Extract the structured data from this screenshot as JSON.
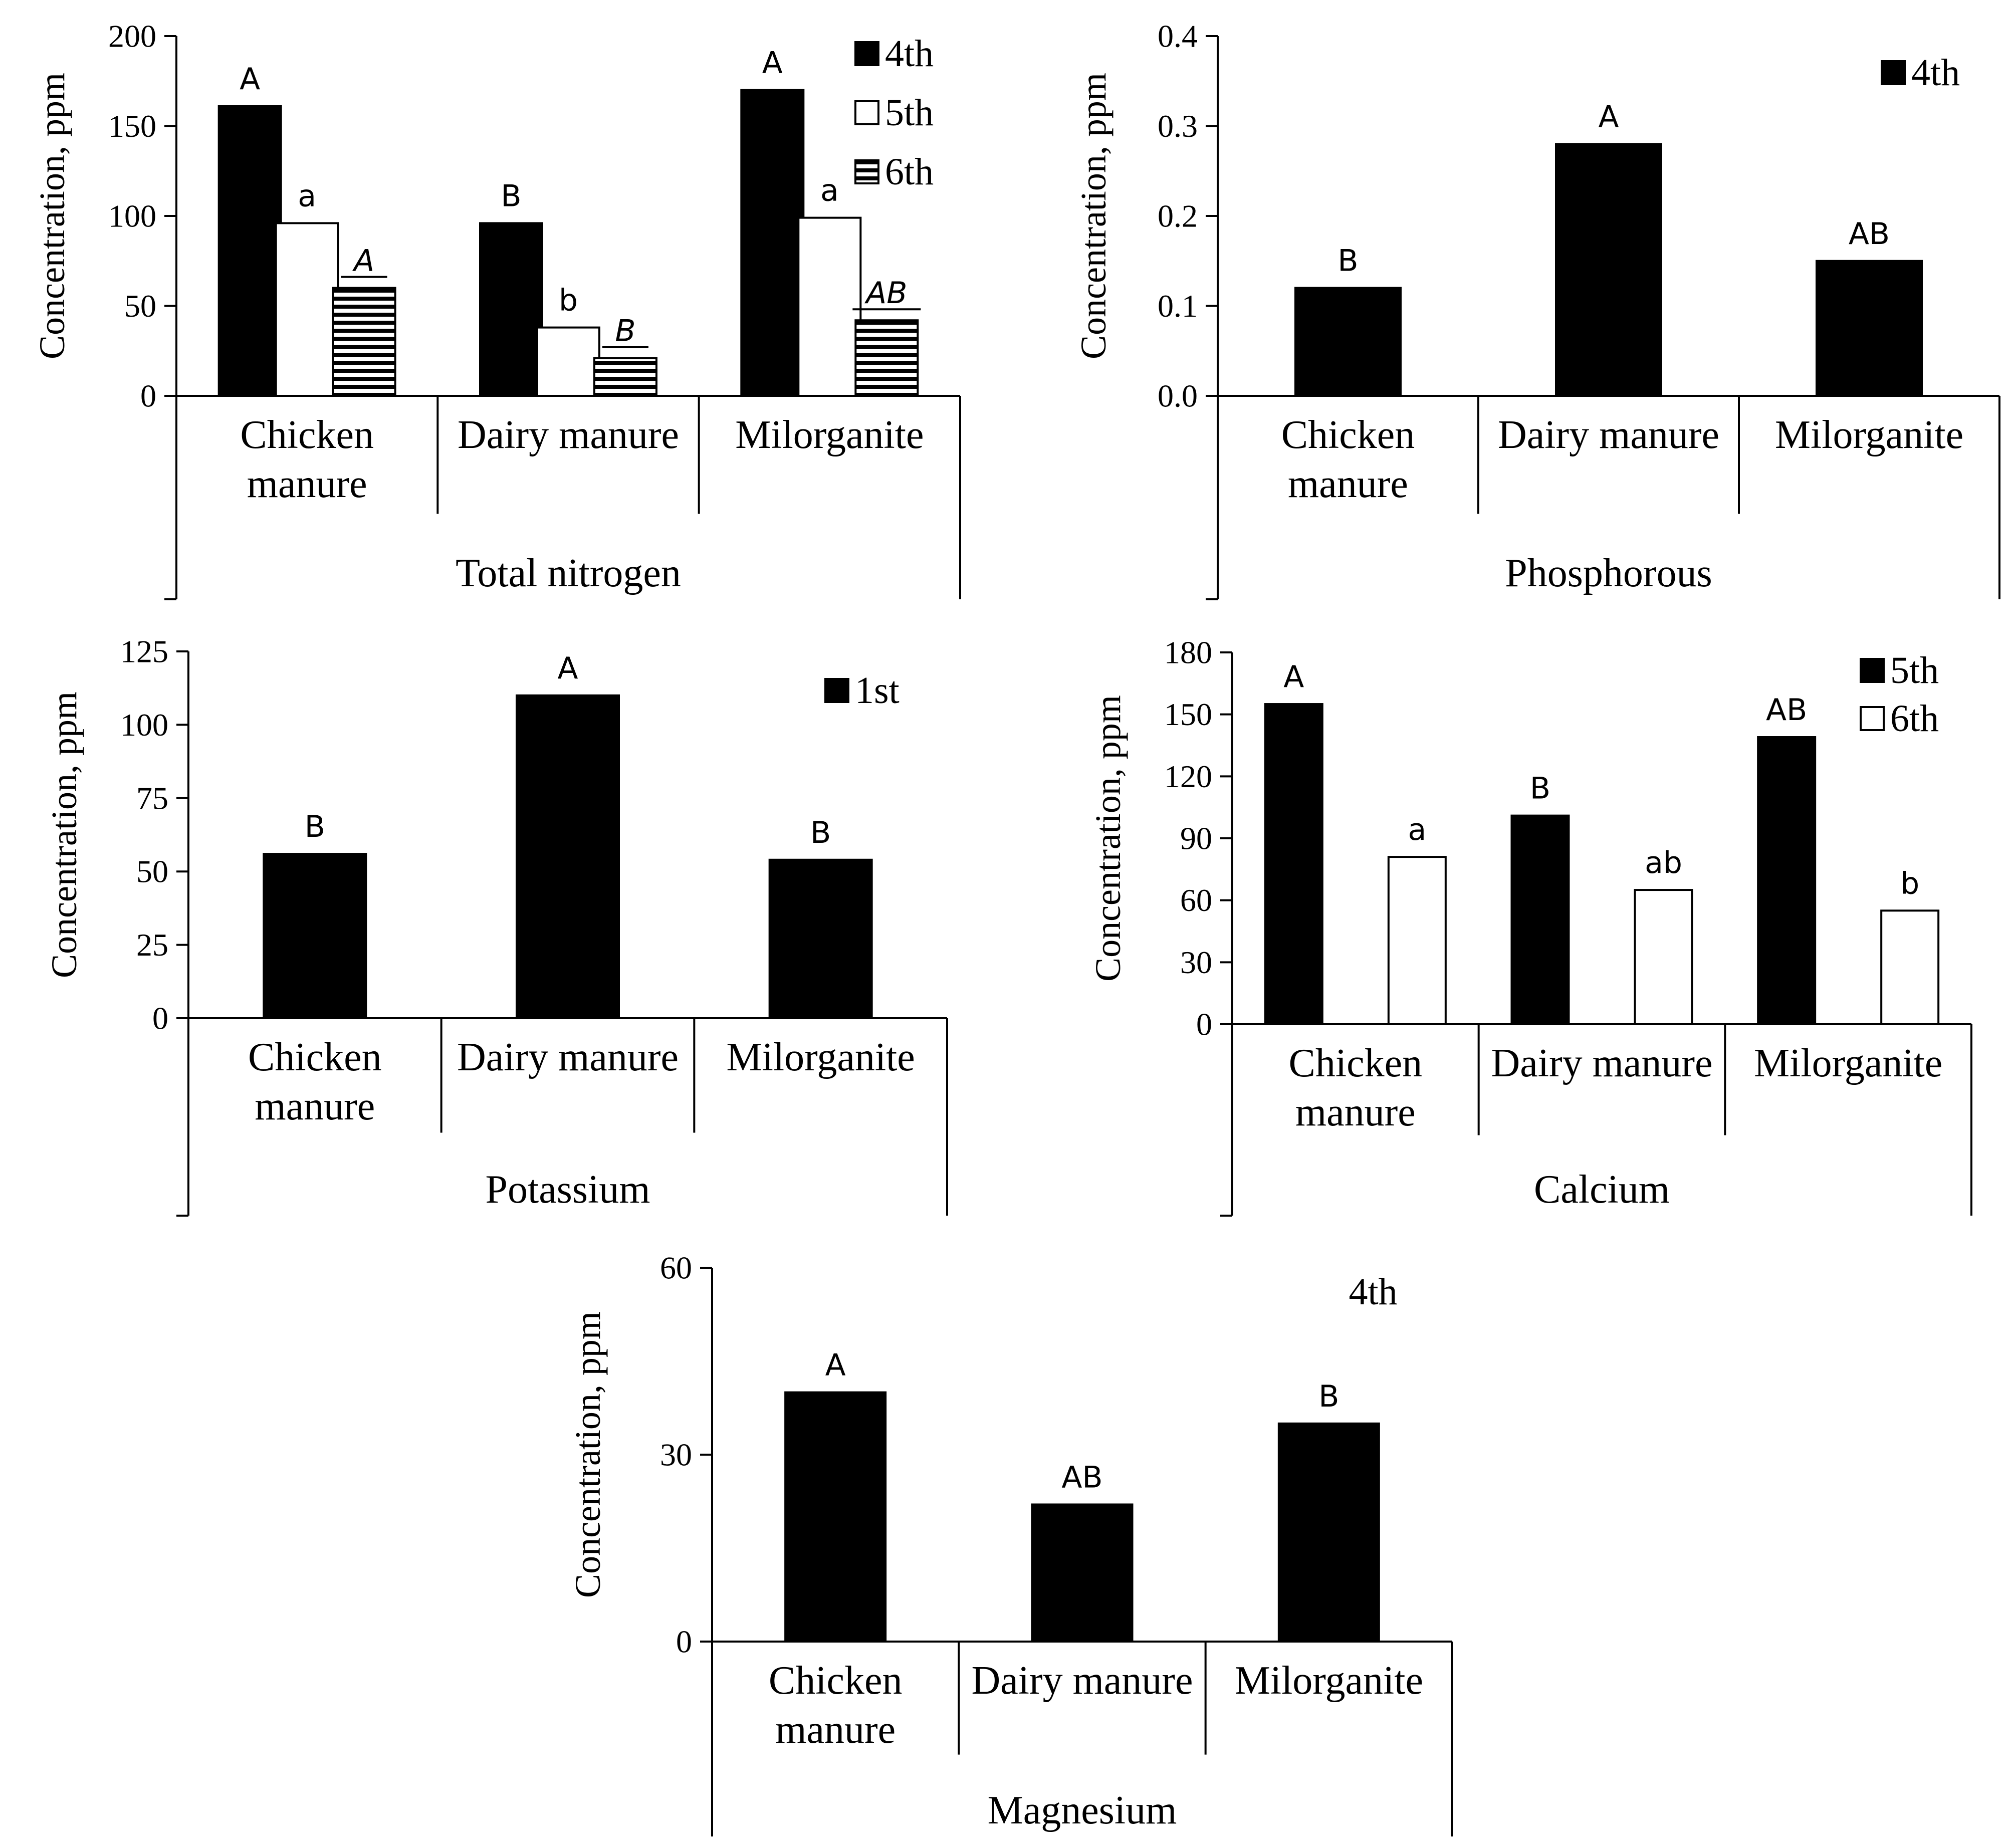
{
  "chart_data": [
    {
      "type": "bar",
      "title": "Total nitrogen",
      "ylabel": "Concentration, ppm",
      "ylim": [
        0,
        200
      ],
      "yticks": [
        "0",
        "50",
        "100",
        "150",
        "200"
      ],
      "categories": [
        [
          "Chicken",
          "manure"
        ],
        [
          "Dairy manure"
        ],
        [
          "Milorganite"
        ]
      ],
      "legend": [
        {
          "name": "4th",
          "pattern": "solid"
        },
        {
          "name": "5th",
          "pattern": "open"
        },
        {
          "name": "6th",
          "pattern": "hstripe"
        }
      ],
      "series": [
        {
          "name": "4th",
          "values": [
            161,
            96,
            170
          ],
          "labels": [
            "A",
            "B",
            "A"
          ],
          "italic": false,
          "underline": false
        },
        {
          "name": "5th",
          "values": [
            96,
            38,
            99
          ],
          "labels": [
            "a",
            "b",
            "a"
          ],
          "italic": false,
          "underline": false
        },
        {
          "name": "6th",
          "values": [
            60,
            21,
            42
          ],
          "labels": [
            "A",
            "B",
            "AB"
          ],
          "italic": true,
          "underline": true
        }
      ]
    },
    {
      "type": "bar",
      "title": "Phosphorous",
      "ylabel": "Concentration, ppm",
      "ylim": [
        0,
        0.4
      ],
      "yticks": [
        "0.0",
        "0.1",
        "0.2",
        "0.3",
        "0.4"
      ],
      "categories": [
        [
          "Chicken",
          "manure"
        ],
        [
          "Dairy manure"
        ],
        [
          "Milorganite"
        ]
      ],
      "legend": [
        {
          "name": "4th",
          "pattern": "solid"
        }
      ],
      "series": [
        {
          "name": "4th",
          "values": [
            0.12,
            0.28,
            0.15
          ],
          "labels": [
            "B",
            "A",
            "AB"
          ],
          "italic": false,
          "underline": false
        }
      ]
    },
    {
      "type": "bar",
      "title": "Potassium",
      "ylabel": "Concentration, ppm",
      "ylim": [
        0,
        125
      ],
      "yticks": [
        "0",
        "25",
        "50",
        "75",
        "100",
        "125"
      ],
      "categories": [
        [
          "Chicken",
          "manure"
        ],
        [
          "Dairy manure"
        ],
        [
          "Milorganite"
        ]
      ],
      "legend": [
        {
          "name": "1st",
          "pattern": "solid"
        }
      ],
      "series": [
        {
          "name": "1st",
          "values": [
            56,
            110,
            54
          ],
          "labels": [
            "B",
            "A",
            "B"
          ],
          "italic": false,
          "underline": false
        }
      ]
    },
    {
      "type": "bar",
      "title": "Calcium",
      "ylabel": "Concentration, ppm",
      "ylim": [
        0,
        180
      ],
      "yticks": [
        "0",
        "30",
        "60",
        "90",
        "120",
        "150",
        "180"
      ],
      "categories": [
        [
          "Chicken",
          "manure"
        ],
        [
          "Dairy manure"
        ],
        [
          "Milorganite"
        ]
      ],
      "legend": [
        {
          "name": "5th",
          "pattern": "solid"
        },
        {
          "name": "6th",
          "pattern": "open"
        }
      ],
      "series": [
        {
          "name": "5th",
          "values": [
            155,
            101,
            139
          ],
          "labels": [
            "A",
            "B",
            "AB"
          ],
          "italic": false,
          "underline": false
        },
        {
          "name": "6th",
          "values": [
            81,
            65,
            55
          ],
          "labels": [
            "a",
            "ab",
            "b"
          ],
          "italic": false,
          "underline": false
        }
      ]
    },
    {
      "type": "bar",
      "title": "Magnesium",
      "ylabel": "Concentration, ppm",
      "ylim": [
        0,
        60
      ],
      "yticks": [
        "0",
        "30",
        "60"
      ],
      "categories": [
        [
          "Chicken",
          "manure"
        ],
        [
          "Dairy manure"
        ],
        [
          "Milorganite"
        ]
      ],
      "legend": [
        {
          "name": "4th",
          "pattern": "none"
        }
      ],
      "series": [
        {
          "name": "4th",
          "values": [
            40,
            22,
            35
          ],
          "labels": [
            "A",
            "AB",
            "B"
          ],
          "italic": false,
          "underline": false
        }
      ]
    }
  ]
}
